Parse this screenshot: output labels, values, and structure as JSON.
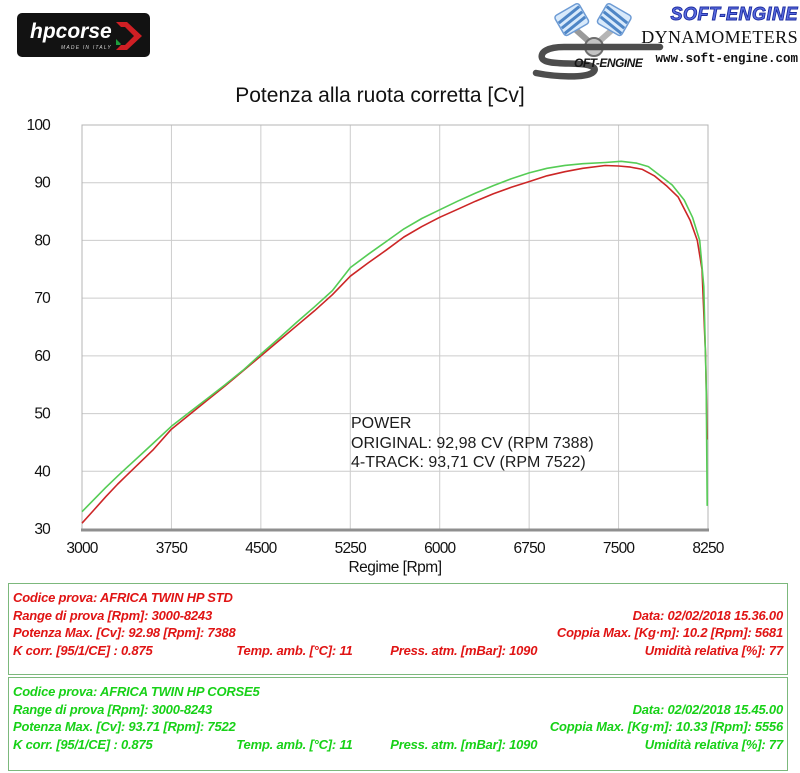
{
  "header": {
    "hpcorse": {
      "wordmark": "hpcorse",
      "made_in": "MADE IN ITALY"
    },
    "softengine": {
      "brand": "SOFT-ENGINE",
      "subtitle": "DYNAMOMETERS",
      "url": "www.soft-engine.com",
      "s_text": "OFT-ENGINE"
    }
  },
  "chart_data": {
    "type": "line",
    "title": "Potenza alla ruota corretta [Cv]",
    "xlabel": "Regime [Rpm]",
    "ylabel": "",
    "xlim": [
      3000,
      8250
    ],
    "ylim": [
      30,
      100
    ],
    "x_ticks": [
      3000,
      3750,
      4500,
      5250,
      6000,
      6750,
      7500,
      8250
    ],
    "y_ticks": [
      30,
      40,
      50,
      60,
      70,
      80,
      90,
      100
    ],
    "grid": true,
    "legend_position": "none",
    "grid_color": "#cccccc",
    "axis_color": "#8f8f8f",
    "series": [
      {
        "name": "ORIGINAL",
        "color": "#cc2626",
        "points": [
          [
            3000,
            31
          ],
          [
            3100,
            33.3
          ],
          [
            3200,
            35.6
          ],
          [
            3300,
            37.8
          ],
          [
            3400,
            39.8
          ],
          [
            3500,
            41.8
          ],
          [
            3600,
            43.8
          ],
          [
            3750,
            47.3
          ],
          [
            3900,
            49.8
          ],
          [
            4050,
            52.3
          ],
          [
            4200,
            54.8
          ],
          [
            4350,
            57.4
          ],
          [
            4500,
            60
          ],
          [
            4650,
            62.6
          ],
          [
            4800,
            65.2
          ],
          [
            4950,
            67.8
          ],
          [
            5100,
            70.6
          ],
          [
            5250,
            73.8
          ],
          [
            5400,
            76.1
          ],
          [
            5550,
            78.3
          ],
          [
            5700,
            80.6
          ],
          [
            5850,
            82.4
          ],
          [
            6000,
            84
          ],
          [
            6150,
            85.4
          ],
          [
            6300,
            86.8
          ],
          [
            6450,
            88.1
          ],
          [
            6600,
            89.2
          ],
          [
            6750,
            90.2
          ],
          [
            6900,
            91.2
          ],
          [
            7050,
            91.9
          ],
          [
            7200,
            92.5
          ],
          [
            7388,
            92.98
          ],
          [
            7500,
            92.9
          ],
          [
            7600,
            92.7
          ],
          [
            7700,
            92.3
          ],
          [
            7800,
            91.2
          ],
          [
            7900,
            89.5
          ],
          [
            8000,
            87.5
          ],
          [
            8100,
            83.5
          ],
          [
            8160,
            80
          ],
          [
            8200,
            75
          ],
          [
            8230,
            60
          ],
          [
            8243,
            45.5
          ]
        ]
      },
      {
        "name": "4-TRACK",
        "color": "#55cc55",
        "points": [
          [
            3000,
            33
          ],
          [
            3100,
            35.1
          ],
          [
            3200,
            37.2
          ],
          [
            3300,
            39.2
          ],
          [
            3400,
            41.1
          ],
          [
            3500,
            43
          ],
          [
            3600,
            44.9
          ],
          [
            3750,
            47.8
          ],
          [
            3900,
            50.2
          ],
          [
            4050,
            52.6
          ],
          [
            4200,
            55
          ],
          [
            4350,
            57.5
          ],
          [
            4500,
            60.3
          ],
          [
            4650,
            63
          ],
          [
            4800,
            65.8
          ],
          [
            4950,
            68.5
          ],
          [
            5100,
            71.3
          ],
          [
            5250,
            75.3
          ],
          [
            5400,
            77.6
          ],
          [
            5550,
            79.8
          ],
          [
            5700,
            82
          ],
          [
            5850,
            83.8
          ],
          [
            6000,
            85.3
          ],
          [
            6150,
            86.8
          ],
          [
            6300,
            88.2
          ],
          [
            6450,
            89.5
          ],
          [
            6600,
            90.7
          ],
          [
            6750,
            91.7
          ],
          [
            6900,
            92.5
          ],
          [
            7050,
            93
          ],
          [
            7200,
            93.3
          ],
          [
            7388,
            93.5
          ],
          [
            7522,
            93.71
          ],
          [
            7650,
            93.4
          ],
          [
            7750,
            92.8
          ],
          [
            7850,
            91.2
          ],
          [
            7950,
            89.6
          ],
          [
            8050,
            87
          ],
          [
            8120,
            84
          ],
          [
            8180,
            80
          ],
          [
            8215,
            72
          ],
          [
            8235,
            55
          ],
          [
            8243,
            34
          ]
        ]
      }
    ],
    "annotation": {
      "line1": "POWER",
      "line2": "ORIGINAL: 92,98 CV (RPM 7388)",
      "line3": "4-TRACK: 93,71 CV (RPM 7522)"
    }
  },
  "tables": [
    {
      "text_color": "#e01414",
      "codice": "Codice prova: AFRICA TWIN HP STD",
      "range": "Range di prova [Rpm]: 3000-8243",
      "data": "Data: 02/02/2018  15.36.00",
      "potenza": "Potenza Max. [Cv]: 92.98   [Rpm]: 7388",
      "coppia": "Coppia Max. [Kg·m]: 10.2   [Rpm]: 5681",
      "kcorr": "K corr. [95/1/CE] : 0.875",
      "temp": "Temp. amb. [°C]: 11",
      "press": "Press. atm. [mBar]: 1090",
      "umidita": "Umidità relativa [%]: 77"
    },
    {
      "text_color": "#17d117",
      "codice": "Codice prova: AFRICA TWIN HP CORSE5",
      "range": "Range di prova [Rpm]: 3000-8243",
      "data": "Data: 02/02/2018  15.45.00",
      "potenza": "Potenza Max. [Cv]: 93.71   [Rpm]: 7522",
      "coppia": "Coppia Max. [Kg·m]: 10.33   [Rpm]: 5556",
      "kcorr": "K corr. [95/1/CE] : 0.875",
      "temp": "Temp. amb. [°C]: 11",
      "press": "Press. atm. [mBar]: 1090",
      "umidita": "Umidità relativa [%]: 77"
    }
  ]
}
